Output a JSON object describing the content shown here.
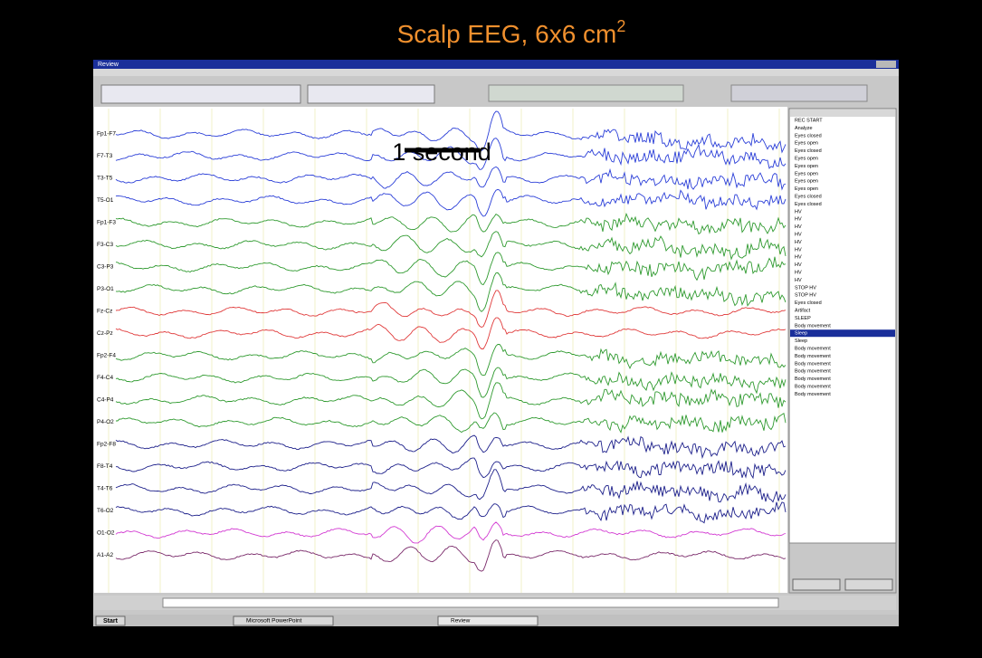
{
  "slide": {
    "title": "Scalp EEG, 6x6 cm",
    "title_superscript": "2",
    "scale_label": "1 second"
  },
  "window": {
    "app_title": "Review"
  },
  "channels": [
    {
      "label": "Fp1-F7",
      "color": "#2b3fd8"
    },
    {
      "label": "F7-T3",
      "color": "#2b3fd8"
    },
    {
      "label": "T3-T5",
      "color": "#2b3fd8"
    },
    {
      "label": "T5-O1",
      "color": "#2b3fd8"
    },
    {
      "label": "Fp1-F3",
      "color": "#2f9a2f"
    },
    {
      "label": "F3-C3",
      "color": "#2f9a2f"
    },
    {
      "label": "C3-P3",
      "color": "#2f9a2f"
    },
    {
      "label": "P3-O1",
      "color": "#2f9a2f"
    },
    {
      "label": "Fz-Cz",
      "color": "#e03a3a"
    },
    {
      "label": "Cz-Pz",
      "color": "#e03a3a"
    },
    {
      "label": "Fp2-F4",
      "color": "#2f9a2f"
    },
    {
      "label": "F4-C4",
      "color": "#2f9a2f"
    },
    {
      "label": "C4-P4",
      "color": "#2f9a2f"
    },
    {
      "label": "P4-O2",
      "color": "#2f9a2f"
    },
    {
      "label": "Fp2-F8",
      "color": "#1c1f8a"
    },
    {
      "label": "F8-T4",
      "color": "#1c1f8a"
    },
    {
      "label": "T4-T6",
      "color": "#1c1f8a"
    },
    {
      "label": "T6-O2",
      "color": "#1c1f8a"
    },
    {
      "label": "O1-O2",
      "color": "#d23ad2"
    },
    {
      "label": "A1-A2",
      "color": "#7a2a6a"
    }
  ],
  "events": [
    "REC START",
    "Analyze",
    "Eyes closed",
    "Eyes open",
    "Eyes closed",
    "Eyes open",
    "Eyes open",
    "Eyes open",
    "Eyes open",
    "Eyes open",
    "Eyes closed",
    "Eyes closed",
    "HV",
    "HV",
    "HV",
    "HV",
    "HV",
    "HV",
    "HV",
    "HV",
    "HV",
    "HV",
    "STOP HV",
    "STOP HV",
    "Eyes closed",
    "Artifact",
    "SLEEP",
    "Body movement",
    "Sleep",
    "Sleep",
    "Body movement",
    "Body movement",
    "Body movement",
    "Body movement",
    "Body movement",
    "Body movement",
    "Body movement"
  ],
  "taskbar": {
    "start": "Start",
    "items": [
      "Microsoft PowerPoint",
      "Review"
    ]
  }
}
